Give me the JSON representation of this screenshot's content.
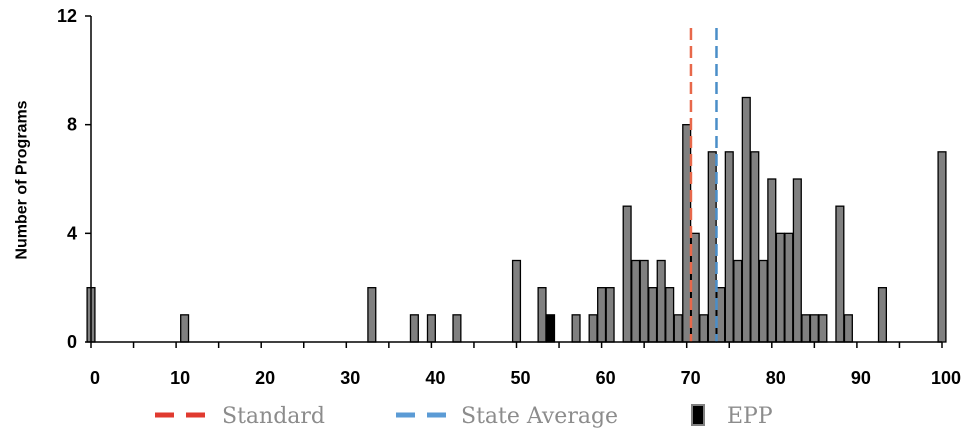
{
  "chart_data": {
    "type": "bar",
    "title": "",
    "xlabel": "",
    "ylabel": "Number of Programs",
    "xlim": [
      0,
      100
    ],
    "ylim": [
      0,
      12
    ],
    "xticks": [
      0,
      10,
      20,
      30,
      40,
      50,
      60,
      70,
      80,
      90,
      100
    ],
    "yticks": [
      0,
      4,
      8,
      12
    ],
    "grid": false,
    "legend_position": "bottom",
    "x": [
      0,
      11,
      33,
      38,
      40,
      43,
      50,
      53,
      54,
      57,
      59,
      60,
      61,
      63,
      64,
      65,
      66,
      67,
      68,
      69,
      70,
      71,
      72,
      73,
      74,
      75,
      76,
      77,
      78,
      79,
      80,
      81,
      82,
      83,
      84,
      85,
      86,
      88,
      89,
      93,
      100
    ],
    "values": [
      2,
      1,
      2,
      1,
      1,
      1,
      3,
      2,
      1,
      1,
      1,
      2,
      2,
      5,
      3,
      3,
      2,
      3,
      2,
      1,
      8,
      4,
      1,
      7,
      2,
      7,
      3,
      9,
      7,
      3,
      6,
      4,
      4,
      6,
      1,
      1,
      1,
      5,
      1,
      2,
      7
    ],
    "highlight_x": 54,
    "reference_lines": [
      {
        "name": "Standard",
        "x": 70.5,
        "color": "#e8684a"
      },
      {
        "name": "State Average",
        "x": 73.5,
        "color": "#4a8ec8"
      }
    ],
    "legend": [
      {
        "label": "Standard",
        "kind": "dashed-line",
        "color": "#e03a2f"
      },
      {
        "label": "State Average",
        "kind": "dashed-line",
        "color": "#5b9bd5"
      },
      {
        "label": "EPP",
        "kind": "swatch",
        "color": "#000000"
      }
    ],
    "colors": {
      "bar_fill": "#808080",
      "bar_stroke": "#000000",
      "highlight_fill": "#000000"
    }
  }
}
